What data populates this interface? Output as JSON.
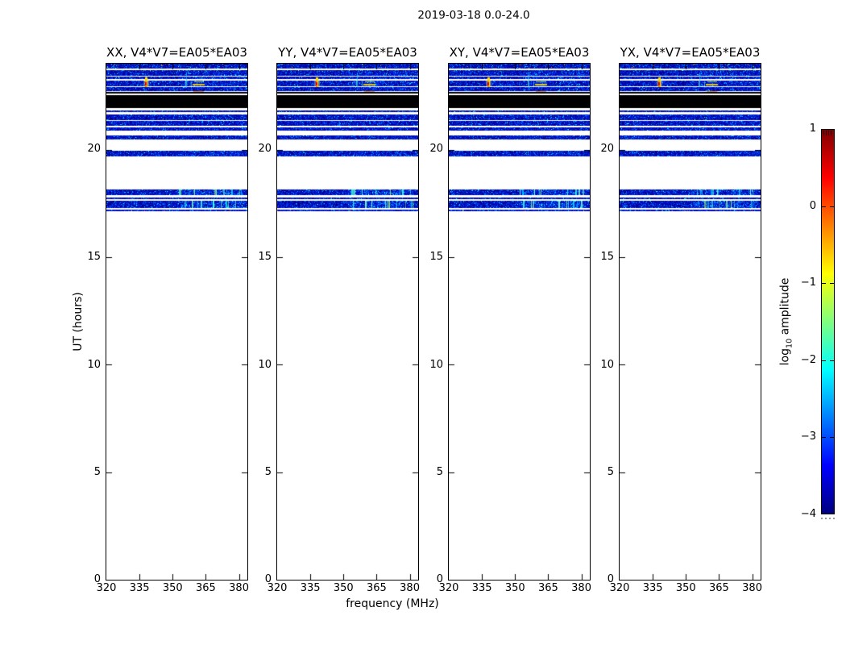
{
  "figure": {
    "suptitle": "2019-03-18 0.0-24.0",
    "xlabel": "frequency (MHz)",
    "ylabel": "UT (hours)",
    "cbar_label_main": "log",
    "cbar_label_sub": "10",
    "cbar_label_rest": " amplitude"
  },
  "chart_data": {
    "type": "heatmap",
    "title": "2019-03-18 0.0-24.0",
    "xlabel": "frequency (MHz)",
    "ylabel": "UT (hours)",
    "x_range_mhz": [
      320,
      383.8
    ],
    "x_ticks_mhz": [
      320,
      335,
      350,
      365,
      380
    ],
    "y_range_hours": [
      0,
      24
    ],
    "y_ticks_hours": [
      0,
      5,
      10,
      15,
      20
    ],
    "panels": [
      {
        "pol": "XX",
        "title": "XX, V4*V7=EA05*EA03"
      },
      {
        "pol": "YY",
        "title": "YY, V4*V7=EA05*EA03"
      },
      {
        "pol": "XY",
        "title": "XY, V4*V7=EA05*EA03"
      },
      {
        "pol": "YX",
        "title": "YX, V4*V7=EA05*EA03"
      }
    ],
    "colorbar": {
      "label": "log10 amplitude",
      "ticks": [
        1,
        0,
        -1,
        -2,
        -3,
        -4
      ],
      "range": [
        -4,
        1
      ],
      "colormap": "jet",
      "stops": [
        "#000080",
        "#0000ff",
        "#00ffff",
        "#ffff00",
        "#ff0000",
        "#800000"
      ],
      "stop_positions": [
        0,
        12.5,
        37.5,
        62.5,
        87.5,
        100
      ]
    },
    "bands": [
      {
        "ut": [
          24.0,
          23.76
        ],
        "type": "noise",
        "warm": true
      },
      {
        "ut": [
          23.7,
          23.45
        ],
        "type": "noise",
        "cyan": 0.28
      },
      {
        "ut": [
          23.41,
          23.27
        ],
        "type": "noise",
        "cyan": 0.3
      },
      {
        "ut": [
          23.21,
          22.96
        ],
        "type": "noise",
        "cyan": 0.25,
        "hotspot": true
      },
      {
        "ut": [
          22.9,
          22.72
        ],
        "type": "noise",
        "cyan": 0.12
      },
      {
        "ut": [
          22.67,
          22.62
        ],
        "type": "black"
      },
      {
        "ut": [
          22.52,
          21.93
        ],
        "type": "black"
      },
      {
        "ut": [
          21.84,
          21.76
        ],
        "type": "noise"
      },
      {
        "ut": [
          21.62,
          21.39
        ],
        "type": "noise",
        "cyan": 0.08
      },
      {
        "ut": [
          21.32,
          21.12
        ],
        "type": "noise"
      },
      {
        "ut": [
          21.03,
          20.87
        ],
        "type": "noise"
      },
      {
        "ut": [
          20.68,
          20.46
        ],
        "type": "noise"
      },
      {
        "ut": [
          19.95,
          19.68
        ],
        "type": "noise",
        "cyan": 0.18
      },
      {
        "ut": [
          18.14,
          17.89
        ],
        "type": "noise",
        "streaks": true
      },
      {
        "ut": [
          17.79,
          17.7
        ],
        "type": "noise"
      },
      {
        "ut": [
          17.61,
          17.29
        ],
        "type": "noise",
        "streaks": true,
        "cyan": 0.15
      },
      {
        "ut": [
          17.22,
          17.12
        ],
        "type": "noise",
        "warm": true
      }
    ],
    "hotspot": {
      "freq_mhz": 338,
      "ut_hours": 23.1,
      "peak": "bright burst, max of colour scale ~0.5-1"
    },
    "noise_palette": [
      "#000088",
      "#0008b0",
      "#0010cc",
      "#001ce0",
      "#0030ee",
      "#0048fa",
      "#0064ff",
      "#0090ff",
      "#00b4ff",
      "#00e0ff",
      "#40ffff"
    ],
    "warm_palette": [
      "#ff9800",
      "#ffd400",
      "#ff5000"
    ],
    "streak_palette": [
      "#00d8ff",
      "#40ffe8",
      "#7dffc8",
      "#a0ff70"
    ]
  }
}
